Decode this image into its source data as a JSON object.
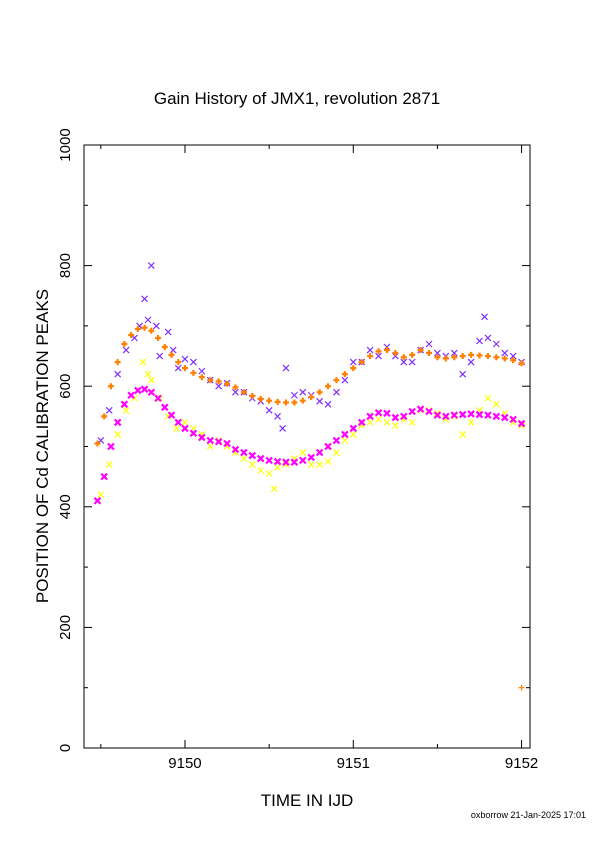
{
  "chart_data": {
    "type": "scatter",
    "title": "Gain History of JMX1, revolution 2871",
    "xlabel": "TIME IN IJD",
    "ylabel": "POSITION OF Cd CALIBRATION PEAKS",
    "xlim": [
      9149.4,
      9152.05
    ],
    "ylim": [
      0,
      1000
    ],
    "x_ticks": [
      9150,
      9151,
      9152
    ],
    "x_tick_labels": [
      "9150",
      "9151",
      "9152"
    ],
    "y_ticks": [
      0,
      200,
      400,
      600,
      800,
      1000
    ],
    "y_tick_labels": [
      "0",
      "200",
      "400",
      "600",
      "800",
      "1000"
    ],
    "grid": false,
    "legend": "none",
    "series": [
      {
        "color": "#7f2fff",
        "marker": "x",
        "role": "raw-upper",
        "x": [
          9149.5,
          9149.55,
          9149.6,
          9149.65,
          9149.7,
          9149.73,
          9149.76,
          9149.78,
          9149.8,
          9149.83,
          9149.85,
          9149.9,
          9149.93,
          9149.96,
          9150.0,
          9150.05,
          9150.1,
          9150.15,
          9150.2,
          9150.25,
          9150.3,
          9150.35,
          9150.4,
          9150.45,
          9150.5,
          9150.55,
          9150.58,
          9150.6,
          9150.65,
          9150.7,
          9150.75,
          9150.8,
          9150.85,
          9150.9,
          9150.95,
          9151.0,
          9151.05,
          9151.1,
          9151.15,
          9151.2,
          9151.25,
          9151.3,
          9151.35,
          9151.4,
          9151.45,
          9151.5,
          9151.55,
          9151.6,
          9151.65,
          9151.7,
          9151.75,
          9151.78,
          9151.8,
          9151.85,
          9151.9,
          9151.95,
          9152.0
        ],
        "y": [
          510,
          560,
          620,
          660,
          680,
          700,
          745,
          710,
          800,
          700,
          650,
          690,
          660,
          630,
          645,
          640,
          625,
          610,
          600,
          605,
          590,
          590,
          580,
          575,
          560,
          550,
          530,
          630,
          585,
          590,
          585,
          575,
          570,
          590,
          610,
          640,
          640,
          660,
          650,
          665,
          650,
          640,
          640,
          660,
          670,
          655,
          650,
          655,
          620,
          640,
          675,
          715,
          680,
          670,
          655,
          650,
          640
        ]
      },
      {
        "color": "#ffff00",
        "marker": "x",
        "role": "raw-lower",
        "x": [
          9149.5,
          9149.55,
          9149.6,
          9149.65,
          9149.7,
          9149.75,
          9149.78,
          9149.8,
          9149.85,
          9149.9,
          9149.95,
          9150.0,
          9150.05,
          9150.1,
          9150.15,
          9150.2,
          9150.25,
          9150.3,
          9150.35,
          9150.4,
          9150.45,
          9150.5,
          9150.53,
          9150.55,
          9150.6,
          9150.65,
          9150.7,
          9150.75,
          9150.8,
          9150.85,
          9150.9,
          9150.95,
          9151.0,
          9151.05,
          9151.1,
          9151.15,
          9151.2,
          9151.25,
          9151.3,
          9151.35,
          9151.4,
          9151.45,
          9151.5,
          9151.55,
          9151.6,
          9151.65,
          9151.7,
          9151.75,
          9151.8,
          9151.85,
          9151.9,
          9151.95,
          9152.0
        ],
        "y": [
          420,
          470,
          520,
          560,
          580,
          640,
          620,
          610,
          580,
          550,
          530,
          540,
          530,
          520,
          500,
          510,
          500,
          490,
          480,
          470,
          460,
          455,
          430,
          465,
          470,
          480,
          490,
          470,
          470,
          475,
          490,
          510,
          520,
          535,
          540,
          545,
          540,
          535,
          545,
          540,
          560,
          560,
          555,
          545,
          550,
          520,
          540,
          560,
          580,
          570,
          555,
          540,
          535
        ]
      },
      {
        "color": "#ff7f00",
        "marker": "+",
        "role": "fit-upper",
        "x": [
          9149.48,
          9149.52,
          9149.56,
          9149.6,
          9149.64,
          9149.68,
          9149.72,
          9149.76,
          9149.8,
          9149.84,
          9149.88,
          9149.92,
          9149.96,
          9150.0,
          9150.05,
          9150.1,
          9150.15,
          9150.2,
          9150.25,
          9150.3,
          9150.35,
          9150.4,
          9150.45,
          9150.5,
          9150.55,
          9150.6,
          9150.65,
          9150.7,
          9150.75,
          9150.8,
          9150.85,
          9150.9,
          9150.95,
          9151.0,
          9151.05,
          9151.1,
          9151.15,
          9151.2,
          9151.25,
          9151.3,
          9151.35,
          9151.4,
          9151.45,
          9151.5,
          9151.55,
          9151.6,
          9151.65,
          9151.7,
          9151.75,
          9151.8,
          9151.85,
          9151.9,
          9151.95,
          9152.0
        ],
        "y": [
          505,
          550,
          600,
          640,
          670,
          685,
          695,
          697,
          692,
          680,
          665,
          652,
          640,
          630,
          622,
          615,
          610,
          608,
          604,
          598,
          590,
          584,
          579,
          576,
          574,
          573,
          573,
          576,
          582,
          590,
          600,
          610,
          620,
          630,
          640,
          650,
          658,
          660,
          655,
          648,
          652,
          660,
          655,
          648,
          646,
          648,
          650,
          652,
          651,
          650,
          648,
          646,
          643,
          638
        ]
      },
      {
        "color": "#ff00ff",
        "marker": "x",
        "role": "fit-lower",
        "x": [
          9149.48,
          9149.52,
          9149.56,
          9149.6,
          9149.64,
          9149.68,
          9149.72,
          9149.76,
          9149.8,
          9149.84,
          9149.88,
          9149.92,
          9149.96,
          9150.0,
          9150.05,
          9150.1,
          9150.15,
          9150.2,
          9150.25,
          9150.3,
          9150.35,
          9150.4,
          9150.45,
          9150.5,
          9150.55,
          9150.6,
          9150.65,
          9150.7,
          9150.75,
          9150.8,
          9150.85,
          9150.9,
          9150.95,
          9151.0,
          9151.05,
          9151.1,
          9151.15,
          9151.2,
          9151.25,
          9151.3,
          9151.35,
          9151.4,
          9151.45,
          9151.5,
          9151.55,
          9151.6,
          9151.65,
          9151.7,
          9151.75,
          9151.8,
          9151.85,
          9151.9,
          9151.95,
          9152.0
        ],
        "y": [
          410,
          450,
          500,
          540,
          570,
          585,
          593,
          595,
          590,
          580,
          565,
          552,
          540,
          530,
          522,
          515,
          510,
          508,
          505,
          495,
          490,
          485,
          480,
          477,
          475,
          474,
          474,
          477,
          482,
          490,
          500,
          510,
          520,
          530,
          540,
          550,
          556,
          555,
          548,
          550,
          558,
          562,
          558,
          552,
          550,
          552,
          553,
          554,
          553,
          552,
          550,
          548,
          545,
          538
        ]
      },
      {
        "color": "#ff7f00",
        "marker": "+",
        "role": "outlier",
        "x": [
          9152.0
        ],
        "y": [
          100
        ]
      }
    ]
  },
  "footer": "oxborrow 21-Jan-2025 17:01"
}
